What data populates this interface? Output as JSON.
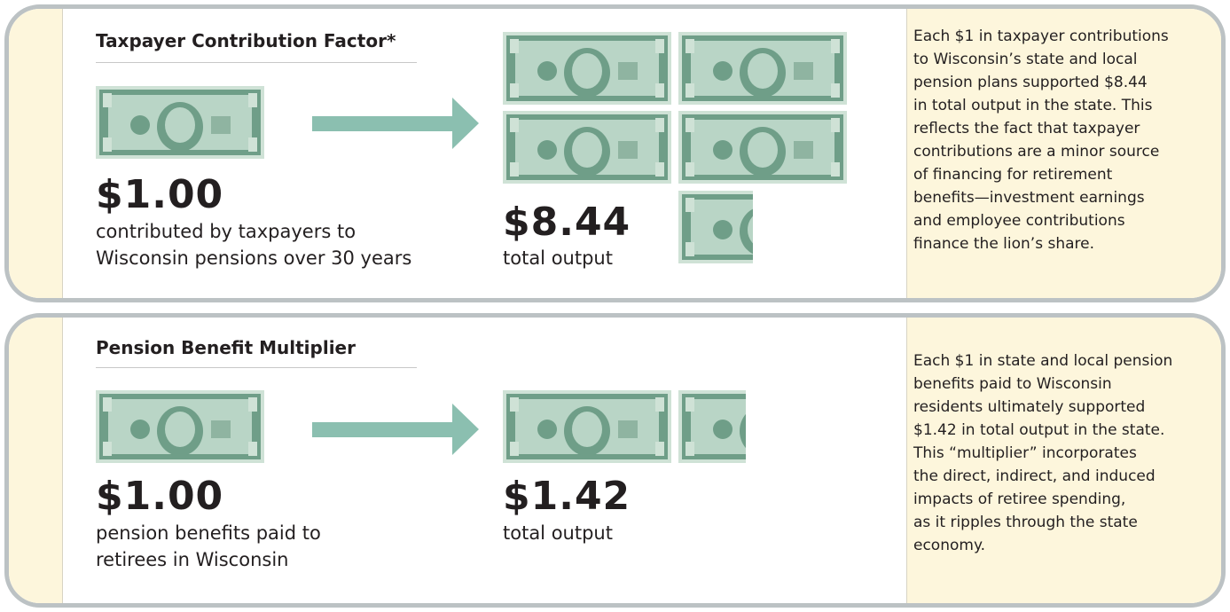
{
  "panels": [
    {
      "title": "Taxpayer Contribution Factor*",
      "input": {
        "amount": "$1.00",
        "description": [
          "contributed by taxpayers to",
          "Wisconsin pensions over 30 years"
        ]
      },
      "output": {
        "amount": "$8.44",
        "description": [
          "total output"
        ]
      },
      "note": [
        "Each $1 in taxpayer contributions",
        "to Wisconsin’s state and local",
        "pension plans supported $8.44",
        "in total output in the state. This",
        "reflects the fact that taxpayer",
        "contributions are a minor source",
        "of financing for retirement",
        "benefits—investment earnings",
        "and employee contributions",
        "finance the lion’s share."
      ]
    },
    {
      "title": "Pension Benefit Multiplier",
      "input": {
        "amount": "$1.00",
        "description": [
          "pension benefits paid to",
          "retirees in Wisconsin"
        ]
      },
      "output": {
        "amount": "$1.42",
        "description": [
          "total output"
        ]
      },
      "note": [
        "Each $1 in state and local pension",
        "benefits paid to Wisconsin",
        "residents ultimately supported",
        "$1.42 in total output in the state.",
        "This “multiplier” incorporates",
        "the direct, indirect, and induced",
        "impacts of retiree spending,",
        "as it ripples through the state",
        "economy."
      ]
    }
  ]
}
